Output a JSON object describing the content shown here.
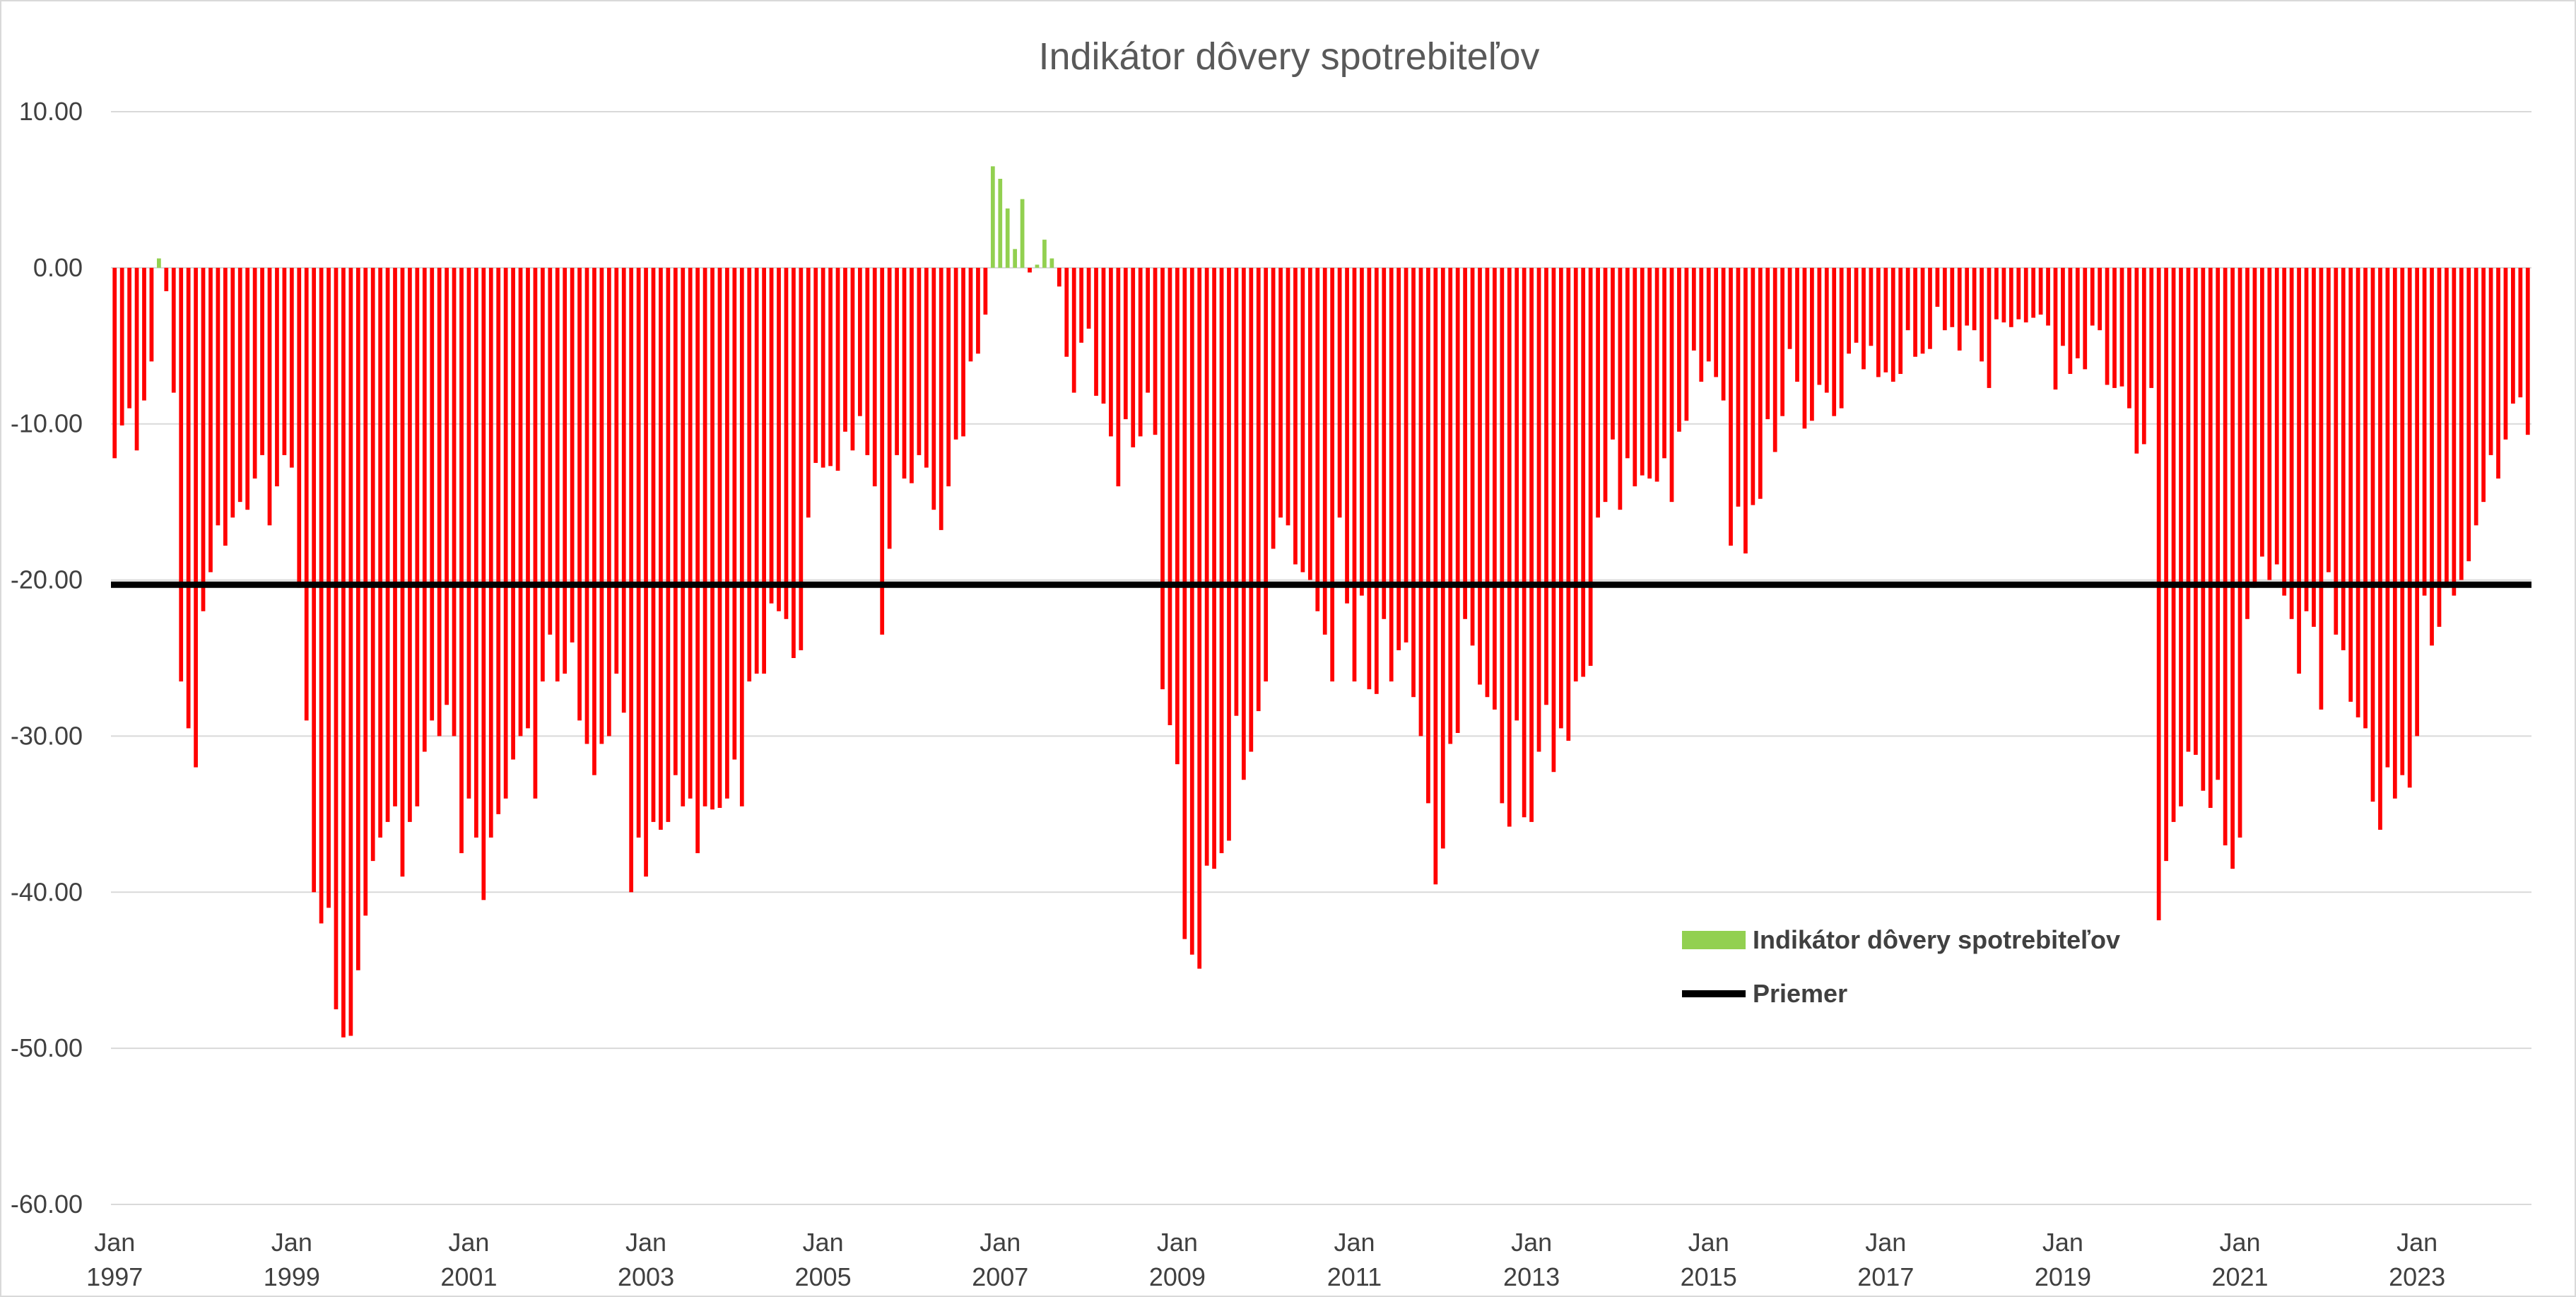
{
  "chart_data": {
    "type": "bar",
    "title": "Indikátor dôvery spotrebiteľov",
    "xlabel": "",
    "ylabel": "",
    "ylim": [
      -60,
      10
    ],
    "y_ticks": [
      10,
      0,
      -10,
      -20,
      -30,
      -40,
      -50,
      -60
    ],
    "y_tick_labels": [
      "10.00",
      "0.00",
      "-10.00",
      "-20.00",
      "-30.00",
      "-40.00",
      "-50.00",
      "-60.00"
    ],
    "x_tick_labels": [
      {
        "month": "Jan",
        "year": "1997"
      },
      {
        "month": "Jan",
        "year": "1999"
      },
      {
        "month": "Jan",
        "year": "2001"
      },
      {
        "month": "Jan",
        "year": "2003"
      },
      {
        "month": "Jan",
        "year": "2005"
      },
      {
        "month": "Jan",
        "year": "2007"
      },
      {
        "month": "Jan",
        "year": "2009"
      },
      {
        "month": "Jan",
        "year": "2011"
      },
      {
        "month": "Jan",
        "year": "2013"
      },
      {
        "month": "Jan",
        "year": "2015"
      },
      {
        "month": "Jan",
        "year": "2017"
      },
      {
        "month": "Jan",
        "year": "2019"
      },
      {
        "month": "Jan",
        "year": "2021"
      },
      {
        "month": "Jan",
        "year": "2023"
      }
    ],
    "start": "1997-01",
    "frequency": "monthly",
    "average": -20.3,
    "grid": true,
    "legend_position": "bottom-right",
    "colors": {
      "positive": "#92d050",
      "negative": "#ff0000",
      "average": "#000000",
      "grid": "#d9d9d9"
    },
    "series": [
      {
        "name": "Indikátor dôvery spotrebiteľov",
        "values": [
          -12.2,
          -10.1,
          -9.0,
          -11.7,
          -8.5,
          -6.0,
          0.6,
          -1.5,
          -8.0,
          -26.5,
          -29.5,
          -32.0,
          -22.0,
          -19.5,
          -16.5,
          -17.8,
          -16.0,
          -15.0,
          -15.5,
          -13.5,
          -12.0,
          -16.5,
          -14.0,
          -12.0,
          -12.8,
          -20.5,
          -29.0,
          -40.0,
          -42.0,
          -41.0,
          -47.5,
          -49.3,
          -49.2,
          -45.0,
          -41.5,
          -38.0,
          -36.5,
          -35.5,
          -34.5,
          -39.0,
          -35.5,
          -34.5,
          -31.0,
          -29.0,
          -30.0,
          -28.0,
          -30.0,
          -37.5,
          -34.0,
          -36.5,
          -40.5,
          -36.5,
          -35.0,
          -34.0,
          -31.5,
          -30.0,
          -29.5,
          -34.0,
          -26.5,
          -23.5,
          -26.5,
          -26.0,
          -24.0,
          -29.0,
          -30.5,
          -32.5,
          -30.5,
          -30.0,
          -26.0,
          -28.5,
          -40.0,
          -36.5,
          -39.0,
          -35.5,
          -36.0,
          -35.5,
          -32.5,
          -34.5,
          -34.0,
          -37.5,
          -34.5,
          -34.7,
          -34.6,
          -34.0,
          -31.5,
          -34.5,
          -26.5,
          -26.0,
          -26.0,
          -21.5,
          -22.0,
          -22.5,
          -25.0,
          -24.5,
          -16.0,
          -12.5,
          -12.8,
          -12.7,
          -13.0,
          -10.5,
          -11.7,
          -9.5,
          -12.0,
          -14.0,
          -23.5,
          -18.0,
          -12.0,
          -13.5,
          -13.8,
          -12.0,
          -12.8,
          -15.5,
          -16.8,
          -14.0,
          -11.0,
          -10.8,
          -6.0,
          -5.5,
          -3.0,
          6.5,
          5.7,
          3.8,
          1.2,
          4.4,
          -0.3,
          0.2,
          1.8,
          0.6,
          -1.2,
          -5.7,
          -8.0,
          -4.8,
          -3.9,
          -8.2,
          -8.7,
          -10.8,
          -14.0,
          -9.7,
          -11.5,
          -10.8,
          -8.0,
          -10.7,
          -27.0,
          -29.3,
          -31.8,
          -43.0,
          -44.0,
          -44.9,
          -38.3,
          -38.5,
          -37.5,
          -36.7,
          -28.7,
          -32.8,
          -31.0,
          -28.4,
          -26.5,
          -18.0,
          -16.0,
          -16.5,
          -19.0,
          -19.5,
          -20.0,
          -22.0,
          -23.5,
          -26.5,
          -16.0,
          -21.5,
          -26.5,
          -21.0,
          -27.0,
          -27.3,
          -22.5,
          -26.5,
          -24.5,
          -24.0,
          -27.5,
          -30.0,
          -34.3,
          -39.5,
          -37.2,
          -30.5,
          -29.8,
          -22.5,
          -24.2,
          -26.7,
          -27.5,
          -28.3,
          -34.3,
          -35.8,
          -29.0,
          -35.2,
          -35.5,
          -31.0,
          -28.0,
          -32.3,
          -29.5,
          -30.3,
          -26.5,
          -26.2,
          -25.5,
          -16.0,
          -15.0,
          -11.0,
          -15.5,
          -12.2,
          -14.0,
          -13.3,
          -13.5,
          -13.7,
          -12.2,
          -15.0,
          -10.5,
          -9.8,
          -5.3,
          -7.3,
          -6.0,
          -7.0,
          -8.5,
          -17.8,
          -15.3,
          -18.3,
          -15.2,
          -14.8,
          -9.7,
          -11.8,
          -9.5,
          -5.2,
          -7.3,
          -10.3,
          -9.8,
          -7.5,
          -8.0,
          -9.5,
          -9.0,
          -5.5,
          -4.8,
          -6.5,
          -5.0,
          -7.0,
          -6.7,
          -7.3,
          -6.8,
          -4.0,
          -5.7,
          -5.5,
          -5.2,
          -2.5,
          -4.0,
          -3.8,
          -5.3,
          -3.7,
          -4.0,
          -6.0,
          -7.7,
          -3.3,
          -3.5,
          -3.8,
          -3.3,
          -3.5,
          -3.2,
          -3.0,
          -3.7,
          -7.8,
          -5.0,
          -6.8,
          -5.8,
          -6.5,
          -3.7,
          -4.0,
          -7.5,
          -7.7,
          -7.6,
          -9.0,
          -11.9,
          -11.3,
          -7.7,
          -41.8,
          -38.0,
          -35.5,
          -34.5,
          -31.0,
          -31.2,
          -33.5,
          -34.6,
          -32.8,
          -37.0,
          -38.5,
          -36.5,
          -22.5,
          -20.5,
          -18.5,
          -20.0,
          -19.0,
          -21.0,
          -22.5,
          -26.0,
          -22.0,
          -23.0,
          -28.3,
          -19.5,
          -23.5,
          -24.5,
          -27.8,
          -28.8,
          -29.5,
          -34.2,
          -36.0,
          -32.0,
          -34.0,
          -32.5,
          -33.3,
          -30.0,
          -21.0,
          -24.2,
          -23.0,
          -20.5,
          -21.0,
          -20.0,
          -18.8,
          -16.5,
          -15.0,
          -12.0,
          -13.5,
          -11.0,
          -8.7,
          -8.3,
          -10.7
        ]
      },
      {
        "name": "Priemer",
        "type": "line",
        "value": -20.3
      }
    ]
  }
}
